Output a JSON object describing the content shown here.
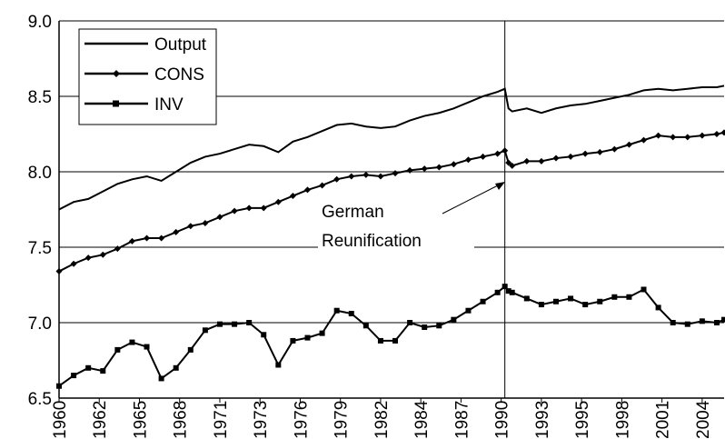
{
  "chart_data": {
    "type": "line",
    "x": [
      1960,
      1961,
      1962,
      1963,
      1964,
      1965,
      1966,
      1967,
      1968,
      1969,
      1970,
      1971,
      1972,
      1973,
      1974,
      1975,
      1976,
      1977,
      1978,
      1979,
      1980,
      1981,
      1982,
      1983,
      1984,
      1985,
      1986,
      1987,
      1988,
      1989,
      1990,
      1990.5,
      1990.75,
      1991,
      1992,
      1993,
      1994,
      1995,
      1996,
      1997,
      1998,
      1999,
      2000,
      2001,
      2002,
      2003,
      2004,
      2005,
      2005.5
    ],
    "series": [
      {
        "name": "Output",
        "color": "#000000",
        "marker": "none",
        "values": [
          7.75,
          7.8,
          7.82,
          7.87,
          7.92,
          7.95,
          7.97,
          7.94,
          8.0,
          8.06,
          8.1,
          8.12,
          8.15,
          8.18,
          8.17,
          8.13,
          8.2,
          8.23,
          8.27,
          8.31,
          8.32,
          8.3,
          8.29,
          8.3,
          8.34,
          8.37,
          8.39,
          8.42,
          8.46,
          8.5,
          8.53,
          8.55,
          8.42,
          8.4,
          8.42,
          8.39,
          8.42,
          8.44,
          8.45,
          8.47,
          8.49,
          8.51,
          8.54,
          8.55,
          8.54,
          8.55,
          8.56,
          8.56,
          8.57
        ]
      },
      {
        "name": "CONS",
        "color": "#000000",
        "marker": "diamond",
        "values": [
          7.34,
          7.39,
          7.43,
          7.45,
          7.49,
          7.54,
          7.56,
          7.56,
          7.6,
          7.64,
          7.66,
          7.7,
          7.74,
          7.76,
          7.76,
          7.8,
          7.84,
          7.88,
          7.91,
          7.95,
          7.97,
          7.98,
          7.97,
          7.99,
          8.01,
          8.02,
          8.03,
          8.05,
          8.08,
          8.1,
          8.12,
          8.14,
          8.06,
          8.04,
          8.07,
          8.07,
          8.09,
          8.1,
          8.12,
          8.13,
          8.15,
          8.18,
          8.21,
          8.24,
          8.23,
          8.23,
          8.24,
          8.25,
          8.26
        ]
      },
      {
        "name": "INV",
        "color": "#000000",
        "marker": "square",
        "values": [
          6.58,
          6.65,
          6.7,
          6.68,
          6.82,
          6.87,
          6.84,
          6.63,
          6.7,
          6.82,
          6.95,
          6.99,
          6.99,
          7.0,
          6.92,
          6.72,
          6.88,
          6.9,
          6.93,
          7.08,
          7.06,
          6.98,
          6.88,
          6.88,
          7.0,
          6.97,
          6.98,
          7.02,
          7.08,
          7.14,
          7.2,
          7.24,
          7.21,
          7.2,
          7.16,
          7.12,
          7.14,
          7.16,
          7.12,
          7.14,
          7.17,
          7.17,
          7.22,
          7.1,
          7.0,
          6.99,
          7.01,
          7.0,
          7.02
        ]
      }
    ],
    "xlim": [
      1960,
      2005.5
    ],
    "xticks": [
      {
        "value": 1960,
        "label": "1960"
      },
      {
        "value": 1962.75,
        "label": "1962"
      },
      {
        "value": 1965.5,
        "label": "1965"
      },
      {
        "value": 1968.25,
        "label": "1968"
      },
      {
        "value": 1971,
        "label": "1971"
      },
      {
        "value": 1973.75,
        "label": "1973"
      },
      {
        "value": 1976.5,
        "label": "1976"
      },
      {
        "value": 1979.25,
        "label": "1979"
      },
      {
        "value": 1982,
        "label": "1982"
      },
      {
        "value": 1984.75,
        "label": "1984"
      },
      {
        "value": 1987.5,
        "label": "1987"
      },
      {
        "value": 1990.25,
        "label": "1990"
      },
      {
        "value": 1993,
        "label": "1993"
      },
      {
        "value": 1995.75,
        "label": "1995"
      },
      {
        "value": 1998.5,
        "label": "1998"
      },
      {
        "value": 2001.25,
        "label": "2001"
      },
      {
        "value": 2004,
        "label": "2004"
      }
    ],
    "ylim": [
      6.5,
      9.0
    ],
    "yticks": [
      6.5,
      {
        "value": 7,
        "label": "7.0"
      },
      7.5,
      {
        "value": 8,
        "label": "8.0"
      },
      8.5,
      {
        "value": 9,
        "label": "9.0"
      }
    ],
    "grid": true,
    "legend": "upper left",
    "annotation": {
      "lines": [
        "German",
        "Reunification"
      ],
      "x": 1990.5
    }
  }
}
